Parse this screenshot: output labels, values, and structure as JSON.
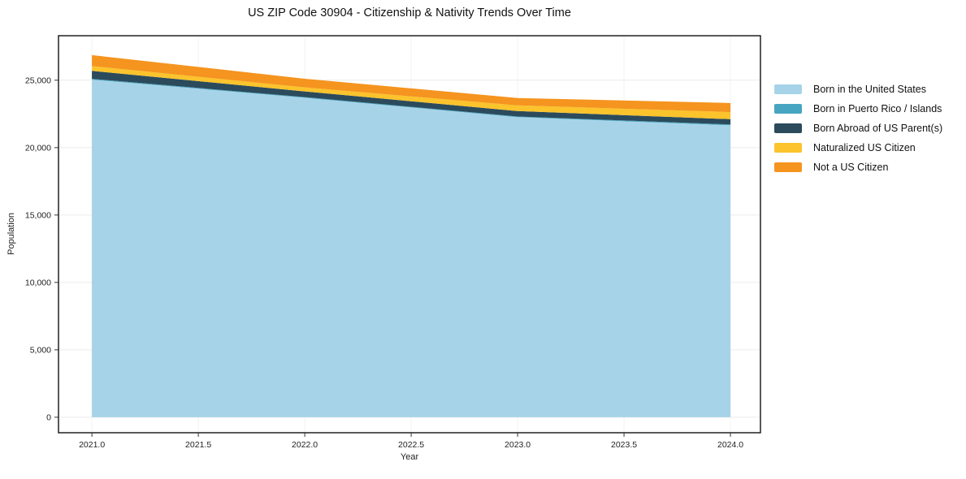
{
  "title": "US ZIP Code 30904 - Citizenship & Nativity Trends Over Time",
  "chart_data": {
    "type": "area",
    "stacked": true,
    "title": "US ZIP Code 30904 - Citizenship & Nativity Trends Over Time",
    "xlabel": "Year",
    "ylabel": "Population",
    "x": [
      2021,
      2022,
      2023,
      2024
    ],
    "series": [
      {
        "name": "Born in the United States",
        "color": "#a7d3e8",
        "values": [
          25040,
          23700,
          22260,
          21660
        ]
      },
      {
        "name": "Born in Puerto Rico / Islands",
        "color": "#46a5c1",
        "values": [
          60,
          50,
          50,
          60
        ]
      },
      {
        "name": "Born Abroad of US Parent(s)",
        "color": "#2b4b5c",
        "values": [
          590,
          420,
          400,
          390
        ]
      },
      {
        "name": "Naturalized US Citizen",
        "color": "#fbc32c",
        "values": [
          360,
          300,
          420,
          520
        ]
      },
      {
        "name": "Not a US Citizen",
        "color": "#f5941f",
        "values": [
          810,
          640,
          550,
          680
        ]
      }
    ],
    "totals": [
      26860,
      25110,
      23680,
      23310
    ],
    "x_tick_values": [
      2021.0,
      2021.5,
      2022.0,
      2022.5,
      2023.0,
      2023.5,
      2024.0
    ],
    "x_tick_labels": [
      "2021.0",
      "2021.5",
      "2022.0",
      "2022.5",
      "2023.0",
      "2023.5",
      "2024.0"
    ],
    "y_tick_values": [
      0,
      5000,
      10000,
      15000,
      20000,
      25000
    ],
    "y_tick_labels": [
      "0",
      "5,000",
      "10,000",
      "15,000",
      "20,000",
      "25,000"
    ],
    "xlim": [
      2020.843,
      2024.141
    ],
    "ylim": [
      -1150,
      28300
    ],
    "grid": true,
    "legend_position": "right",
    "background": "#ffffff",
    "spine_color": "#111111",
    "grid_color_h": "#ebebeb",
    "grid_color_v": "#f2f2f2"
  }
}
